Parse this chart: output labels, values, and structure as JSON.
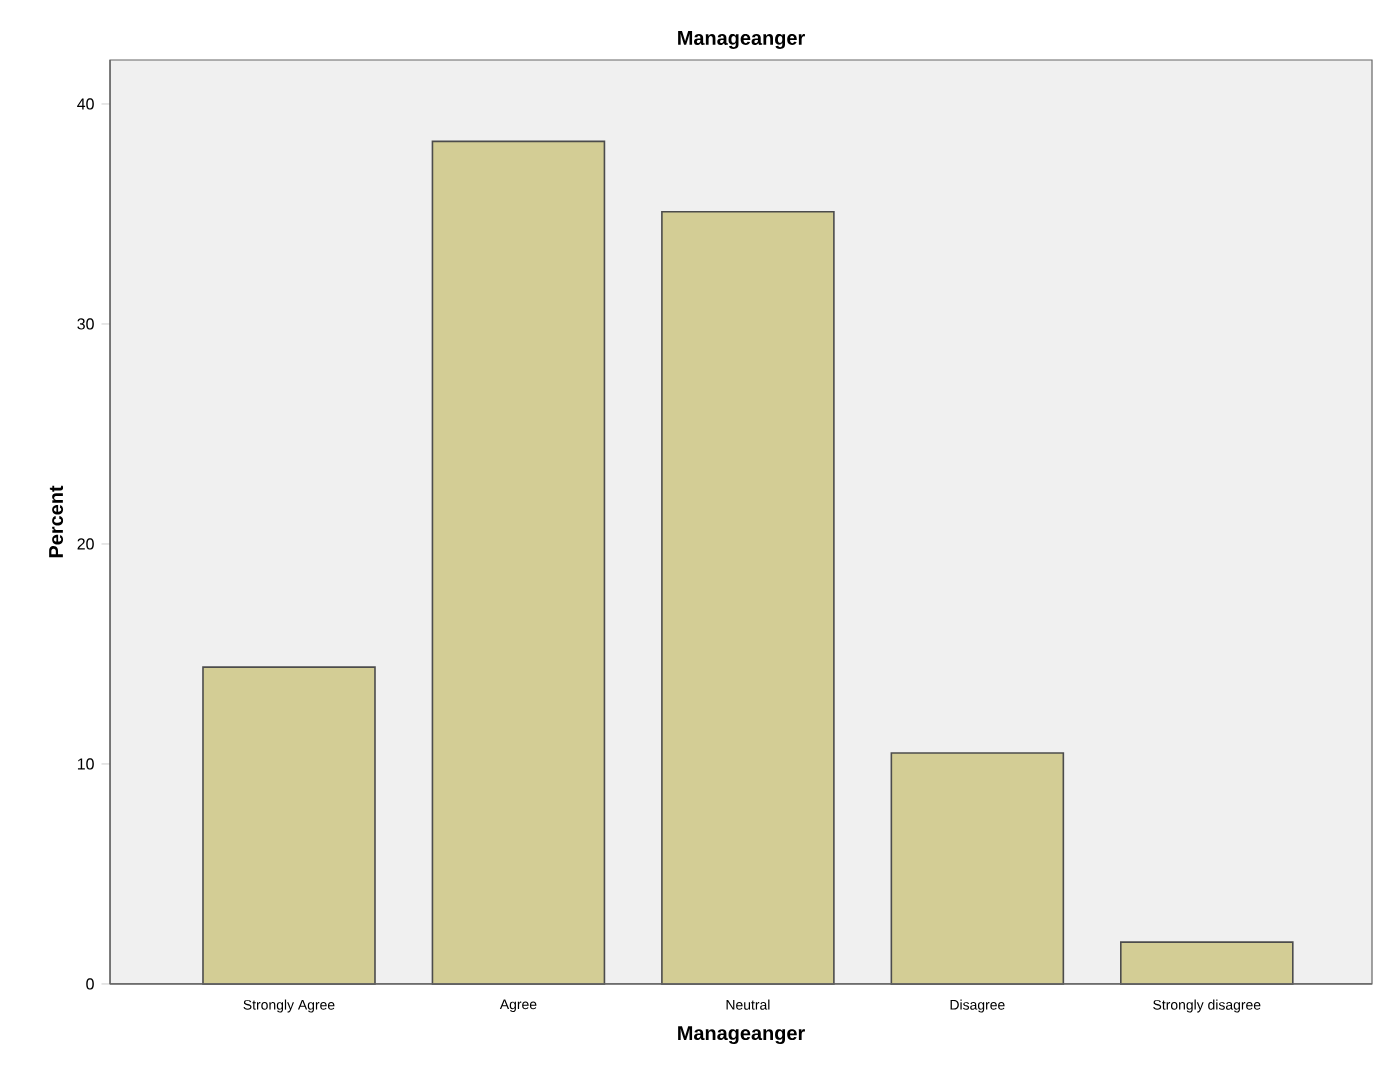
{
  "chart_data": {
    "type": "bar",
    "title": "Manageanger",
    "xlabel": "Manageanger",
    "ylabel": "Percent",
    "categories": [
      "Strongly Agree",
      "Agree",
      "Neutral",
      "Disagree",
      "Strongly disagree"
    ],
    "values": [
      14.4,
      38.3,
      35.1,
      10.5,
      1.9
    ],
    "color": "#d3cd95",
    "ylim": [
      0,
      42
    ],
    "yticks": [
      0,
      10,
      20,
      30,
      40
    ],
    "grid": false
  }
}
